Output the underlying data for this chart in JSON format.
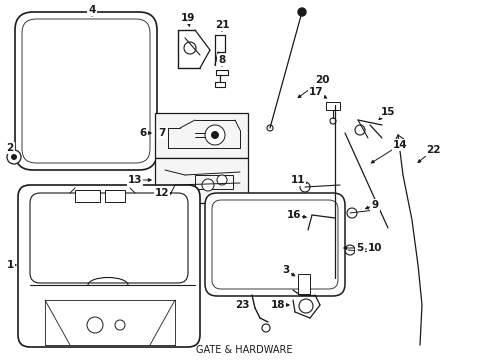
{
  "background_color": "#ffffff",
  "line_color": "#1a1a1a",
  "label_color": "#000000",
  "fig_w": 4.89,
  "fig_h": 3.6,
  "dpi": 100
}
